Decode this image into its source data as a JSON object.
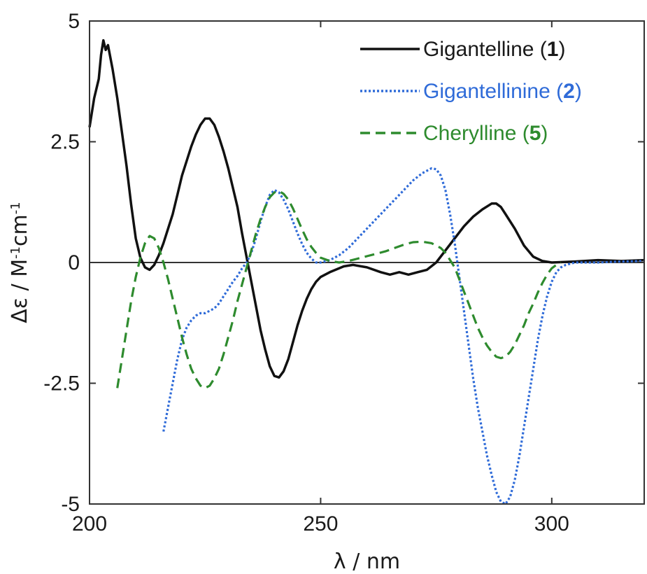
{
  "chart_data": {
    "type": "line",
    "xlabel": "λ / nm",
    "ylabel": "Δε / M-1cm-1",
    "xlim": [
      200,
      320
    ],
    "ylim": [
      -5,
      5
    ],
    "x_ticks": [
      200,
      250,
      300
    ],
    "x_tick_labels": [
      "200",
      "250",
      "300"
    ],
    "y_ticks": [
      5,
      2.5,
      0,
      -2.5,
      -5
    ],
    "y_tick_labels": [
      "5",
      "2.5",
      "0",
      "-2.5",
      "-5"
    ],
    "zero_line": true,
    "grid": false,
    "legend_position": "top-right",
    "series": [
      {
        "name": "Gigantelline (1)",
        "legend_name": "Gigantelline",
        "legend_number": "1",
        "color": "#111111",
        "dash": "solid",
        "points": [
          [
            200,
            2.8
          ],
          [
            201,
            3.4
          ],
          [
            202,
            3.8
          ],
          [
            202.5,
            4.3
          ],
          [
            203,
            4.6
          ],
          [
            203.5,
            4.4
          ],
          [
            204,
            4.5
          ],
          [
            205,
            4.0
          ],
          [
            206,
            3.4
          ],
          [
            207,
            2.7
          ],
          [
            208,
            2.0
          ],
          [
            209,
            1.2
          ],
          [
            210,
            0.5
          ],
          [
            211,
            0.1
          ],
          [
            212,
            -0.1
          ],
          [
            213,
            -0.15
          ],
          [
            214,
            -0.05
          ],
          [
            215,
            0.15
          ],
          [
            216,
            0.4
          ],
          [
            217,
            0.7
          ],
          [
            218,
            1.0
          ],
          [
            219,
            1.4
          ],
          [
            220,
            1.8
          ],
          [
            221,
            2.1
          ],
          [
            222,
            2.4
          ],
          [
            223,
            2.65
          ],
          [
            224,
            2.85
          ],
          [
            225,
            2.98
          ],
          [
            226,
            2.98
          ],
          [
            227,
            2.85
          ],
          [
            228,
            2.6
          ],
          [
            229,
            2.3
          ],
          [
            230,
            1.95
          ],
          [
            231,
            1.55
          ],
          [
            232,
            1.15
          ],
          [
            233,
            0.6
          ],
          [
            234,
            0.1
          ],
          [
            235,
            -0.4
          ],
          [
            236,
            -0.9
          ],
          [
            237,
            -1.4
          ],
          [
            238,
            -1.8
          ],
          [
            239,
            -2.15
          ],
          [
            240,
            -2.35
          ],
          [
            241,
            -2.38
          ],
          [
            242,
            -2.25
          ],
          [
            243,
            -2.0
          ],
          [
            244,
            -1.65
          ],
          [
            245,
            -1.3
          ],
          [
            246,
            -1.0
          ],
          [
            247,
            -0.75
          ],
          [
            248,
            -0.55
          ],
          [
            249,
            -0.4
          ],
          [
            250,
            -0.3
          ],
          [
            252,
            -0.2
          ],
          [
            255,
            -0.08
          ],
          [
            257,
            -0.05
          ],
          [
            260,
            -0.1
          ],
          [
            263,
            -0.2
          ],
          [
            265,
            -0.25
          ],
          [
            267,
            -0.2
          ],
          [
            269,
            -0.25
          ],
          [
            271,
            -0.2
          ],
          [
            273,
            -0.15
          ],
          [
            275,
            0.0
          ],
          [
            277,
            0.25
          ],
          [
            279,
            0.5
          ],
          [
            281,
            0.75
          ],
          [
            283,
            0.95
          ],
          [
            285,
            1.1
          ],
          [
            287,
            1.22
          ],
          [
            288,
            1.22
          ],
          [
            289,
            1.15
          ],
          [
            290,
            1.0
          ],
          [
            292,
            0.7
          ],
          [
            294,
            0.35
          ],
          [
            296,
            0.12
          ],
          [
            298,
            0.03
          ],
          [
            300,
            0.0
          ],
          [
            305,
            0.02
          ],
          [
            310,
            0.05
          ],
          [
            315,
            0.03
          ],
          [
            320,
            0.05
          ]
        ]
      },
      {
        "name": "Gigantellinine (2)",
        "legend_name": "Gigantellinine",
        "legend_number": "2",
        "color": "#2f6bd8",
        "dash": "dotted",
        "points": [
          [
            216,
            -3.5
          ],
          [
            217,
            -3.0
          ],
          [
            218,
            -2.5
          ],
          [
            219,
            -2.0
          ],
          [
            220,
            -1.6
          ],
          [
            221,
            -1.35
          ],
          [
            222,
            -1.2
          ],
          [
            223,
            -1.1
          ],
          [
            224,
            -1.05
          ],
          [
            225,
            -1.05
          ],
          [
            226,
            -1.0
          ],
          [
            227,
            -0.95
          ],
          [
            228,
            -0.85
          ],
          [
            229,
            -0.7
          ],
          [
            230,
            -0.55
          ],
          [
            231,
            -0.4
          ],
          [
            232,
            -0.28
          ],
          [
            233,
            -0.12
          ],
          [
            234,
            0.0
          ],
          [
            235,
            0.2
          ],
          [
            236,
            0.5
          ],
          [
            237,
            0.85
          ],
          [
            238,
            1.15
          ],
          [
            239,
            1.4
          ],
          [
            240,
            1.5
          ],
          [
            241,
            1.45
          ],
          [
            242,
            1.3
          ],
          [
            243,
            1.1
          ],
          [
            244,
            0.85
          ],
          [
            245,
            0.6
          ],
          [
            246,
            0.38
          ],
          [
            247,
            0.2
          ],
          [
            248,
            0.08
          ],
          [
            249,
            0.0
          ],
          [
            250,
            0.0
          ],
          [
            252,
            0.05
          ],
          [
            254,
            0.15
          ],
          [
            256,
            0.3
          ],
          [
            258,
            0.5
          ],
          [
            260,
            0.7
          ],
          [
            262,
            0.9
          ],
          [
            264,
            1.1
          ],
          [
            266,
            1.3
          ],
          [
            268,
            1.5
          ],
          [
            270,
            1.7
          ],
          [
            272,
            1.85
          ],
          [
            274,
            1.95
          ],
          [
            275,
            1.93
          ],
          [
            276,
            1.8
          ],
          [
            277,
            1.5
          ],
          [
            278,
            1.0
          ],
          [
            279,
            0.4
          ],
          [
            280,
            -0.3
          ],
          [
            281,
            -1.0
          ],
          [
            282,
            -1.7
          ],
          [
            283,
            -2.4
          ],
          [
            284,
            -3.0
          ],
          [
            285,
            -3.5
          ],
          [
            286,
            -4.0
          ],
          [
            287,
            -4.4
          ],
          [
            288,
            -4.75
          ],
          [
            289,
            -4.95
          ],
          [
            290,
            -5.0
          ],
          [
            291,
            -4.85
          ],
          [
            292,
            -4.5
          ],
          [
            293,
            -4.0
          ],
          [
            294,
            -3.4
          ],
          [
            295,
            -2.8
          ],
          [
            296,
            -2.2
          ],
          [
            297,
            -1.6
          ],
          [
            298,
            -1.1
          ],
          [
            299,
            -0.7
          ],
          [
            300,
            -0.4
          ],
          [
            301,
            -0.2
          ],
          [
            302,
            -0.1
          ],
          [
            303,
            -0.05
          ],
          [
            305,
            0.0
          ],
          [
            310,
            0.0
          ],
          [
            315,
            0.02
          ],
          [
            320,
            0.03
          ]
        ]
      },
      {
        "name": "Cherylline (5)",
        "legend_name": "Cherylline",
        "legend_number": "5",
        "color": "#2e8b2e",
        "dash": "dashed",
        "points": [
          [
            206,
            -2.6
          ],
          [
            207,
            -2.0
          ],
          [
            208,
            -1.4
          ],
          [
            209,
            -0.8
          ],
          [
            210,
            -0.3
          ],
          [
            211,
            0.1
          ],
          [
            212,
            0.4
          ],
          [
            213,
            0.55
          ],
          [
            214,
            0.5
          ],
          [
            215,
            0.3
          ],
          [
            216,
            0.0
          ],
          [
            217,
            -0.35
          ],
          [
            218,
            -0.75
          ],
          [
            219,
            -1.15
          ],
          [
            220,
            -1.55
          ],
          [
            221,
            -1.9
          ],
          [
            222,
            -2.2
          ],
          [
            223,
            -2.4
          ],
          [
            224,
            -2.55
          ],
          [
            225,
            -2.6
          ],
          [
            226,
            -2.55
          ],
          [
            227,
            -2.4
          ],
          [
            228,
            -2.2
          ],
          [
            229,
            -1.9
          ],
          [
            230,
            -1.55
          ],
          [
            231,
            -1.2
          ],
          [
            232,
            -0.8
          ],
          [
            233,
            -0.45
          ],
          [
            234,
            -0.1
          ],
          [
            235,
            0.25
          ],
          [
            236,
            0.6
          ],
          [
            237,
            0.9
          ],
          [
            238,
            1.15
          ],
          [
            239,
            1.35
          ],
          [
            240,
            1.45
          ],
          [
            241,
            1.48
          ],
          [
            242,
            1.42
          ],
          [
            243,
            1.3
          ],
          [
            244,
            1.12
          ],
          [
            245,
            0.9
          ],
          [
            246,
            0.68
          ],
          [
            247,
            0.48
          ],
          [
            248,
            0.32
          ],
          [
            249,
            0.2
          ],
          [
            250,
            0.1
          ],
          [
            252,
            0.03
          ],
          [
            254,
            0.0
          ],
          [
            256,
            0.03
          ],
          [
            258,
            0.08
          ],
          [
            260,
            0.13
          ],
          [
            262,
            0.18
          ],
          [
            264,
            0.23
          ],
          [
            266,
            0.3
          ],
          [
            268,
            0.37
          ],
          [
            270,
            0.42
          ],
          [
            272,
            0.43
          ],
          [
            274,
            0.4
          ],
          [
            276,
            0.3
          ],
          [
            277,
            0.2
          ],
          [
            278,
            0.05
          ],
          [
            279,
            -0.1
          ],
          [
            280,
            -0.35
          ],
          [
            281,
            -0.6
          ],
          [
            282,
            -0.85
          ],
          [
            283,
            -1.1
          ],
          [
            284,
            -1.35
          ],
          [
            285,
            -1.55
          ],
          [
            286,
            -1.72
          ],
          [
            287,
            -1.85
          ],
          [
            288,
            -1.95
          ],
          [
            289,
            -1.98
          ],
          [
            290,
            -1.95
          ],
          [
            291,
            -1.85
          ],
          [
            292,
            -1.7
          ],
          [
            293,
            -1.5
          ],
          [
            294,
            -1.3
          ],
          [
            295,
            -1.05
          ],
          [
            296,
            -0.85
          ],
          [
            297,
            -0.62
          ],
          [
            298,
            -0.42
          ],
          [
            299,
            -0.25
          ],
          [
            300,
            -0.12
          ],
          [
            301,
            -0.05
          ],
          [
            302,
            0.0
          ]
        ]
      }
    ]
  }
}
